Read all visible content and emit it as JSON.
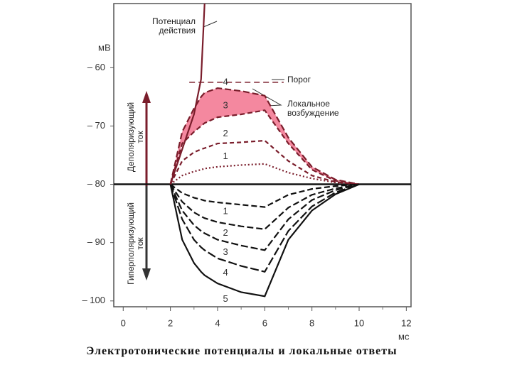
{
  "chart_data": {
    "type": "line",
    "caption": "Электротонические потенциалы и локальные ответы",
    "y_unit": "мВ",
    "x_unit": "мс",
    "depolarizing_label": "Деполяризующий ток",
    "hyperpolarizing_label": "Гиперполяризующий ток",
    "local_label": "Локальное возбуждение",
    "shade_color": "#f4889f",
    "x": [
      2,
      2.5,
      3,
      3.3,
      3.45,
      4,
      5,
      6,
      7,
      8,
      9,
      10,
      11,
      12
    ],
    "series": [
      {
        "name": "4",
        "color": "#7a1d2b",
        "dash": "9 4",
        "values": [
          -80,
          -71,
          -67,
          -65,
          -64.3,
          -63.5,
          -64,
          -64.8,
          -72,
          -77,
          -79.2,
          -80,
          null,
          null
        ]
      },
      {
        "name": "3",
        "color": "#7a1d2b",
        "dash": "7 4",
        "values": [
          -80,
          -73,
          -71,
          -70,
          -69.5,
          -68.5,
          -68,
          -67.3,
          -73,
          -77.5,
          -79.4,
          -80,
          null,
          null
        ]
      },
      {
        "name": "2",
        "color": "#7a1d2b",
        "dash": "6 4",
        "values": [
          -80,
          -76,
          -74.5,
          -74,
          -73.8,
          -73,
          -72.8,
          -72.5,
          -76,
          -78.5,
          -79.6,
          -80,
          null,
          null
        ]
      },
      {
        "name": "1",
        "color": "#7a1d2b",
        "dash": "2 3",
        "values": [
          -80,
          -78.5,
          -77.8,
          -77.5,
          -77.3,
          -77,
          -76.7,
          -76.5,
          -78,
          -79,
          -79.7,
          -80,
          null,
          null
        ]
      },
      {
        "name": "1",
        "color": "#111111",
        "dash": "8 4",
        "values": [
          -80,
          -81.5,
          -82.3,
          -82.6,
          -82.8,
          -83.1,
          -83.5,
          -83.9,
          -81.8,
          -80.8,
          -80.3,
          -80,
          null,
          null
        ]
      },
      {
        "name": "2",
        "color": "#111111",
        "dash": "9 4",
        "values": [
          -80,
          -83,
          -84.8,
          -85.5,
          -85.8,
          -86.5,
          -87.2,
          -87.7,
          -84,
          -81.8,
          -80.7,
          -80,
          null,
          null
        ]
      },
      {
        "name": "3",
        "color": "#111111",
        "dash": "10 4",
        "values": [
          -80,
          -84.5,
          -87,
          -88,
          -88.4,
          -89.5,
          -90.5,
          -91.3,
          -86,
          -82.7,
          -81,
          -80,
          null,
          null
        ]
      },
      {
        "name": "4",
        "color": "#111111",
        "dash": "12 4",
        "values": [
          -80,
          -86,
          -89.5,
          -90.8,
          -91.3,
          -92.7,
          -94,
          -95,
          -88,
          -83.8,
          -81.4,
          -80,
          null,
          null
        ]
      },
      {
        "name": "5",
        "color": "#111111",
        "dash": "none",
        "values": [
          -80,
          -89.5,
          -93.5,
          -95,
          -95.6,
          -97,
          -98.5,
          -99.2,
          -89.5,
          -84.5,
          -81.7,
          -80,
          null,
          null
        ]
      },
      {
        "name": "Потенциал действия",
        "color": "#7a1d2b",
        "dash": "none",
        "values": [
          -80,
          -74,
          -68,
          -62,
          -49,
          null,
          null,
          null,
          null,
          null,
          null,
          null,
          null,
          null
        ]
      }
    ],
    "threshold": {
      "label": "Порог",
      "value": -62.5
    },
    "baseline": -80,
    "xlim": [
      -0.4,
      12.2
    ],
    "ylim": [
      -101,
      -49
    ],
    "xticks": [
      0,
      2,
      4,
      6,
      8,
      10,
      12
    ],
    "yticks": [
      {
        "value": -60,
        "label": "– 60"
      },
      {
        "value": -70,
        "label": "– 70"
      },
      {
        "value": -80,
        "label": "– 80"
      },
      {
        "value": -90,
        "label": "– 90"
      },
      {
        "value": -100,
        "label": "– 100"
      }
    ]
  }
}
